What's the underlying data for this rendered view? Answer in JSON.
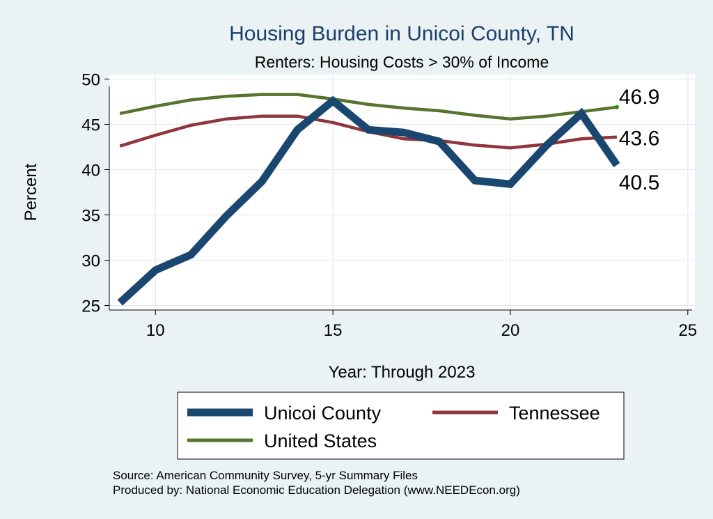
{
  "chart_data": {
    "type": "line",
    "title": "Housing Burden in Unicoi County, TN",
    "subtitle": "Renters: Housing Costs > 30% of Income",
    "xlabel": "Year: Through 2023",
    "ylabel": "Percent",
    "xlim": [
      8.7,
      25.2
    ],
    "ylim": [
      24.5,
      50.5
    ],
    "xticks": [
      10,
      15,
      20,
      25
    ],
    "yticks": [
      25,
      30,
      35,
      40,
      45,
      50
    ],
    "grid": true,
    "legend_position": "bottom",
    "series": [
      {
        "name": "Unicoi County",
        "color": "#1a476f",
        "x": [
          9,
          10,
          11,
          12,
          13,
          14,
          15,
          16,
          17,
          18,
          19,
          20,
          21,
          22,
          23
        ],
        "values": [
          25.3,
          28.9,
          30.6,
          34.9,
          38.7,
          44.4,
          47.6,
          44.4,
          44.1,
          43.1,
          38.8,
          38.4,
          42.6,
          46.2,
          40.5
        ],
        "end_label": "40.5"
      },
      {
        "name": "Tennessee",
        "color": "#90353b",
        "x": [
          9,
          10,
          11,
          12,
          13,
          14,
          15,
          16,
          17,
          18,
          19,
          20,
          21,
          22,
          23
        ],
        "values": [
          42.6,
          43.8,
          44.9,
          45.6,
          45.9,
          45.9,
          45.2,
          44.2,
          43.4,
          43.2,
          42.7,
          42.4,
          42.8,
          43.4,
          43.6
        ],
        "end_label": "43.6"
      },
      {
        "name": "United States",
        "color": "#55752f",
        "x": [
          9,
          10,
          11,
          12,
          13,
          14,
          15,
          16,
          17,
          18,
          19,
          20,
          21,
          22,
          23
        ],
        "values": [
          46.2,
          47.0,
          47.7,
          48.1,
          48.3,
          48.3,
          47.8,
          47.2,
          46.8,
          46.5,
          46.0,
          45.6,
          45.9,
          46.4,
          46.9
        ],
        "end_label": "46.9"
      }
    ],
    "notes": [
      "Source: American Community Survey, 5-yr Summary Files",
      "Produced by: National Economic Education Delegation (www.NEEDEcon.org)"
    ]
  }
}
